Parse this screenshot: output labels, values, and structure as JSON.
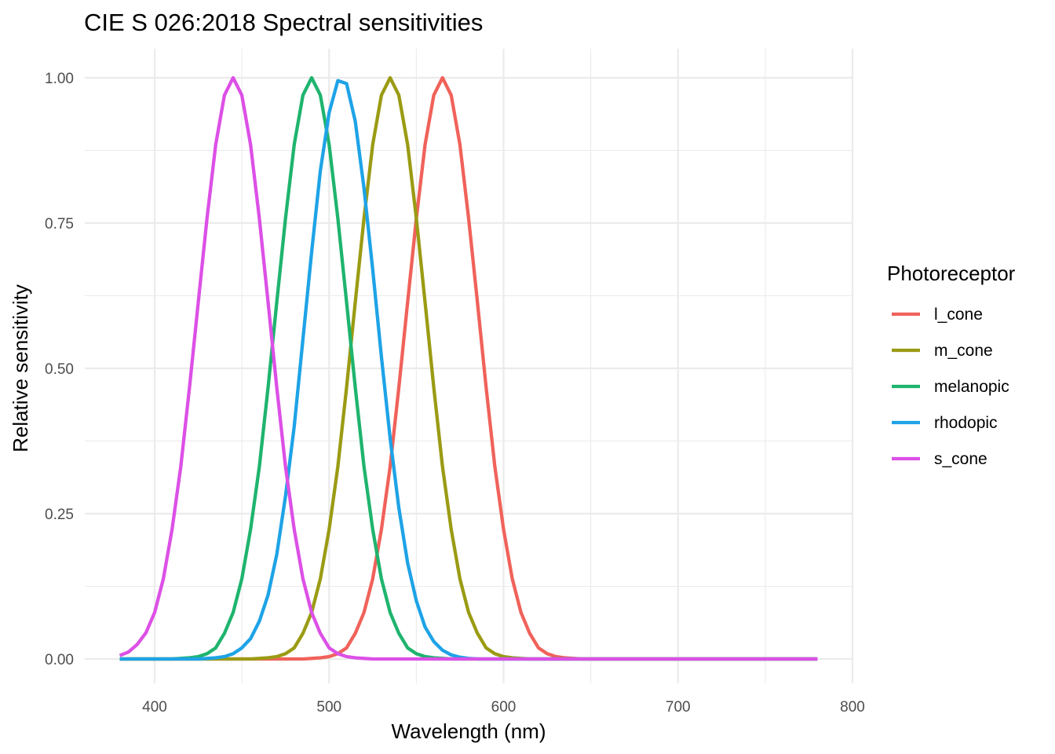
{
  "chart_data": {
    "type": "line",
    "title": "CIE S 026:2018 Spectral sensitivities",
    "xlabel": "Wavelength (nm)",
    "ylabel": "Relative sensitivity",
    "xlim": [
      380,
      780
    ],
    "ylim": [
      0,
      1
    ],
    "x_ticks": [
      400,
      500,
      600,
      700,
      800
    ],
    "y_ticks": [
      0.0,
      0.25,
      0.5,
      0.75,
      1.0
    ],
    "x_tick_labels": [
      "400",
      "500",
      "600",
      "700",
      "800"
    ],
    "y_tick_labels": [
      "0.00",
      "0.25",
      "0.50",
      "0.75",
      "1.00"
    ],
    "grid": true,
    "legend": {
      "title": "Photoreceptor",
      "position": "right"
    },
    "x": [
      380,
      385,
      390,
      395,
      400,
      405,
      410,
      415,
      420,
      425,
      430,
      435,
      440,
      445,
      450,
      455,
      460,
      465,
      470,
      475,
      480,
      485,
      490,
      495,
      500,
      505,
      510,
      515,
      520,
      525,
      530,
      535,
      540,
      545,
      550,
      555,
      560,
      565,
      570,
      575,
      580,
      585,
      590,
      595,
      600,
      605,
      610,
      615,
      620,
      625,
      630,
      635,
      640,
      645,
      650,
      655,
      660,
      665,
      670,
      675,
      680,
      685,
      690,
      695,
      700,
      705,
      710,
      715,
      720,
      725,
      730,
      735,
      740,
      745,
      750,
      755,
      760,
      765,
      770,
      775,
      780
    ],
    "series": [
      {
        "name": "l_cone",
        "color": "#f0625a",
        "values": [
          0,
          0,
          0,
          0,
          0,
          0,
          0,
          0,
          0,
          0,
          0,
          0,
          0,
          0,
          0,
          0,
          0,
          0,
          0,
          0,
          0,
          0,
          0.001,
          0.002,
          0.004,
          0.009,
          0.019,
          0.044,
          0.08,
          0.138,
          0.223,
          0.331,
          0.467,
          0.614,
          0.758,
          0.885,
          0.97,
          1.0,
          0.97,
          0.885,
          0.758,
          0.614,
          0.467,
          0.331,
          0.223,
          0.138,
          0.08,
          0.044,
          0.019,
          0.009,
          0.004,
          0.002,
          0.001,
          0,
          0,
          0,
          0,
          0,
          0,
          0,
          0,
          0,
          0,
          0,
          0,
          0,
          0,
          0,
          0,
          0,
          0,
          0,
          0,
          0,
          0,
          0,
          0,
          0,
          0,
          0,
          0
        ]
      },
      {
        "name": "m_cone",
        "color": "#9b9b14",
        "values": [
          0,
          0,
          0,
          0,
          0,
          0,
          0,
          0,
          0,
          0,
          0,
          0,
          0,
          0,
          0,
          0,
          0.001,
          0.002,
          0.004,
          0.009,
          0.019,
          0.044,
          0.08,
          0.138,
          0.223,
          0.331,
          0.467,
          0.614,
          0.758,
          0.885,
          0.97,
          1.0,
          0.97,
          0.885,
          0.758,
          0.614,
          0.467,
          0.331,
          0.223,
          0.138,
          0.08,
          0.044,
          0.019,
          0.009,
          0.004,
          0.002,
          0.001,
          0,
          0,
          0,
          0,
          0,
          0,
          0,
          0,
          0,
          0,
          0,
          0,
          0,
          0,
          0,
          0,
          0,
          0,
          0,
          0,
          0,
          0,
          0,
          0,
          0,
          0,
          0,
          0,
          0,
          0,
          0,
          0,
          0,
          0
        ]
      },
      {
        "name": "melanopic",
        "color": "#1fb46e",
        "values": [
          0,
          0,
          0,
          0,
          0,
          0,
          0,
          0.001,
          0.002,
          0.004,
          0.009,
          0.019,
          0.044,
          0.08,
          0.138,
          0.223,
          0.331,
          0.467,
          0.614,
          0.758,
          0.885,
          0.97,
          1.0,
          0.97,
          0.885,
          0.758,
          0.614,
          0.467,
          0.331,
          0.223,
          0.138,
          0.08,
          0.044,
          0.019,
          0.009,
          0.004,
          0.002,
          0.001,
          0,
          0,
          0,
          0,
          0,
          0,
          0,
          0,
          0,
          0,
          0,
          0,
          0,
          0,
          0,
          0,
          0,
          0,
          0,
          0,
          0,
          0,
          0,
          0,
          0,
          0,
          0,
          0,
          0,
          0,
          0,
          0,
          0,
          0,
          0,
          0,
          0,
          0,
          0,
          0,
          0,
          0,
          0
        ]
      },
      {
        "name": "rhodopic",
        "color": "#1ea3e6",
        "values": [
          0,
          0,
          0,
          0,
          0,
          0,
          0,
          0,
          0,
          0,
          0.001,
          0.002,
          0.004,
          0.009,
          0.019,
          0.035,
          0.065,
          0.11,
          0.18,
          0.28,
          0.4,
          0.55,
          0.7,
          0.84,
          0.94,
          0.995,
          0.99,
          0.925,
          0.81,
          0.67,
          0.52,
          0.38,
          0.26,
          0.165,
          0.1,
          0.055,
          0.03,
          0.015,
          0.007,
          0.003,
          0.001,
          0,
          0,
          0,
          0,
          0,
          0,
          0,
          0,
          0,
          0,
          0,
          0,
          0,
          0,
          0,
          0,
          0,
          0,
          0,
          0,
          0,
          0,
          0,
          0,
          0,
          0,
          0,
          0,
          0,
          0,
          0,
          0,
          0,
          0,
          0,
          0,
          0,
          0,
          0,
          0
        ]
      },
      {
        "name": "s_cone",
        "color": "#dc50e6",
        "values": [
          0.006,
          0.012,
          0.025,
          0.045,
          0.08,
          0.138,
          0.223,
          0.331,
          0.467,
          0.614,
          0.758,
          0.885,
          0.97,
          1.0,
          0.97,
          0.885,
          0.758,
          0.614,
          0.467,
          0.331,
          0.223,
          0.138,
          0.08,
          0.044,
          0.019,
          0.009,
          0.004,
          0.002,
          0.001,
          0,
          0,
          0,
          0,
          0,
          0,
          0,
          0,
          0,
          0,
          0,
          0,
          0,
          0,
          0,
          0,
          0,
          0,
          0,
          0,
          0,
          0,
          0,
          0,
          0,
          0,
          0,
          0,
          0,
          0,
          0,
          0,
          0,
          0,
          0,
          0,
          0,
          0,
          0,
          0,
          0,
          0,
          0,
          0,
          0,
          0,
          0,
          0,
          0,
          0,
          0,
          0
        ]
      }
    ]
  }
}
